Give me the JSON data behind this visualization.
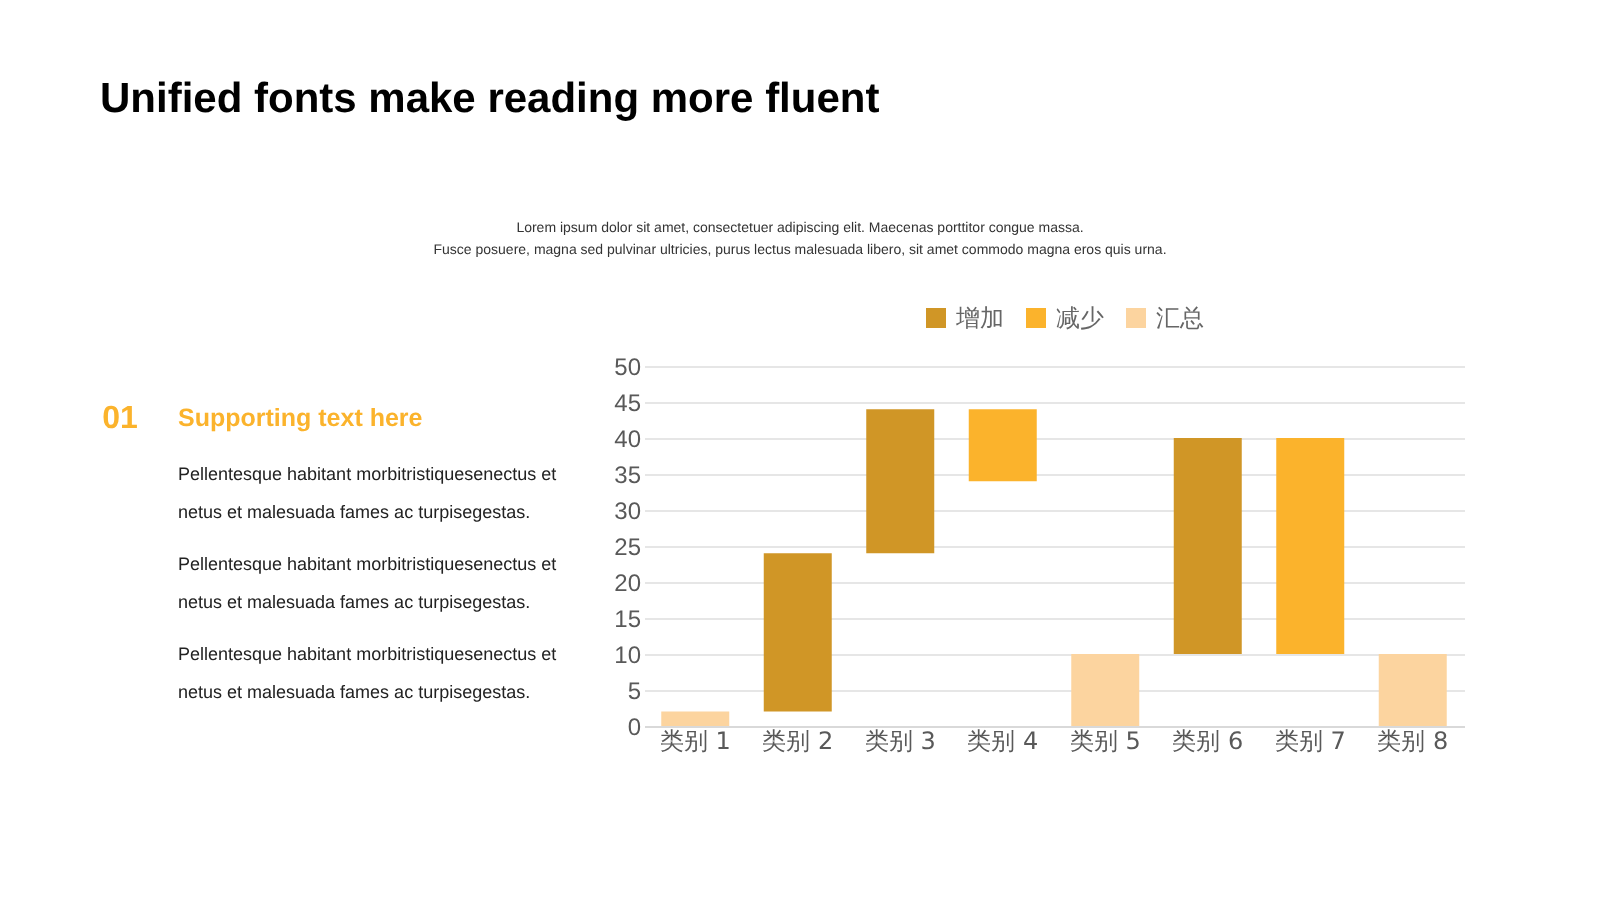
{
  "chart_data": {
    "type": "bar",
    "title": "Unified fonts make reading more fluent",
    "subtitle": "Lorem ipsum dolor sit amet, consectetuer adipiscing elit. Maecenas porttitor congue massa.\nFusce posuere, magna sed pulvinar ultricies, purus lectus malesuada libero, sit amet commodo magna eros quis urna.",
    "annotations": [
      "01",
      "Supporting text here",
      "Pellentesque habitant morbitristiquesenectus et netus et malesuada fames ac turpisegestas.",
      "Pellentesque habitant morbitristiquesenectus et netus et malesuada fames ac turpisegestas.",
      "Pellentesque habitant morbitristiquesenectus et netus et malesuada fames ac turpisegestas."
    ],
    "categories": [
      "类别 1",
      "类别 2",
      "类别 3",
      "类别 4",
      "类别 5",
      "类别 6",
      "类别 7",
      "类别 8"
    ],
    "series": [
      {
        "name": "增加",
        "color": "#d09626",
        "values": [
          null,
          22,
          20,
          null,
          null,
          30,
          null,
          null
        ],
        "base": [
          null,
          2,
          24,
          null,
          null,
          10,
          null,
          null
        ]
      },
      {
        "name": "减少",
        "color": "#fbb32c",
        "values": [
          null,
          null,
          null,
          10,
          null,
          null,
          30,
          null
        ],
        "base": [
          null,
          null,
          null,
          34,
          null,
          null,
          10,
          null
        ]
      },
      {
        "name": "汇总",
        "color": "#fcd49f",
        "values": [
          2,
          null,
          null,
          null,
          10,
          null,
          null,
          10
        ],
        "base": [
          0,
          null,
          null,
          null,
          0,
          null,
          null,
          0
        ]
      }
    ],
    "ylim": [
      0,
      50
    ],
    "yticks": [
      0,
      5,
      10,
      15,
      20,
      25,
      30,
      35,
      40,
      45,
      50
    ],
    "grid": "y",
    "legend": "top"
  }
}
